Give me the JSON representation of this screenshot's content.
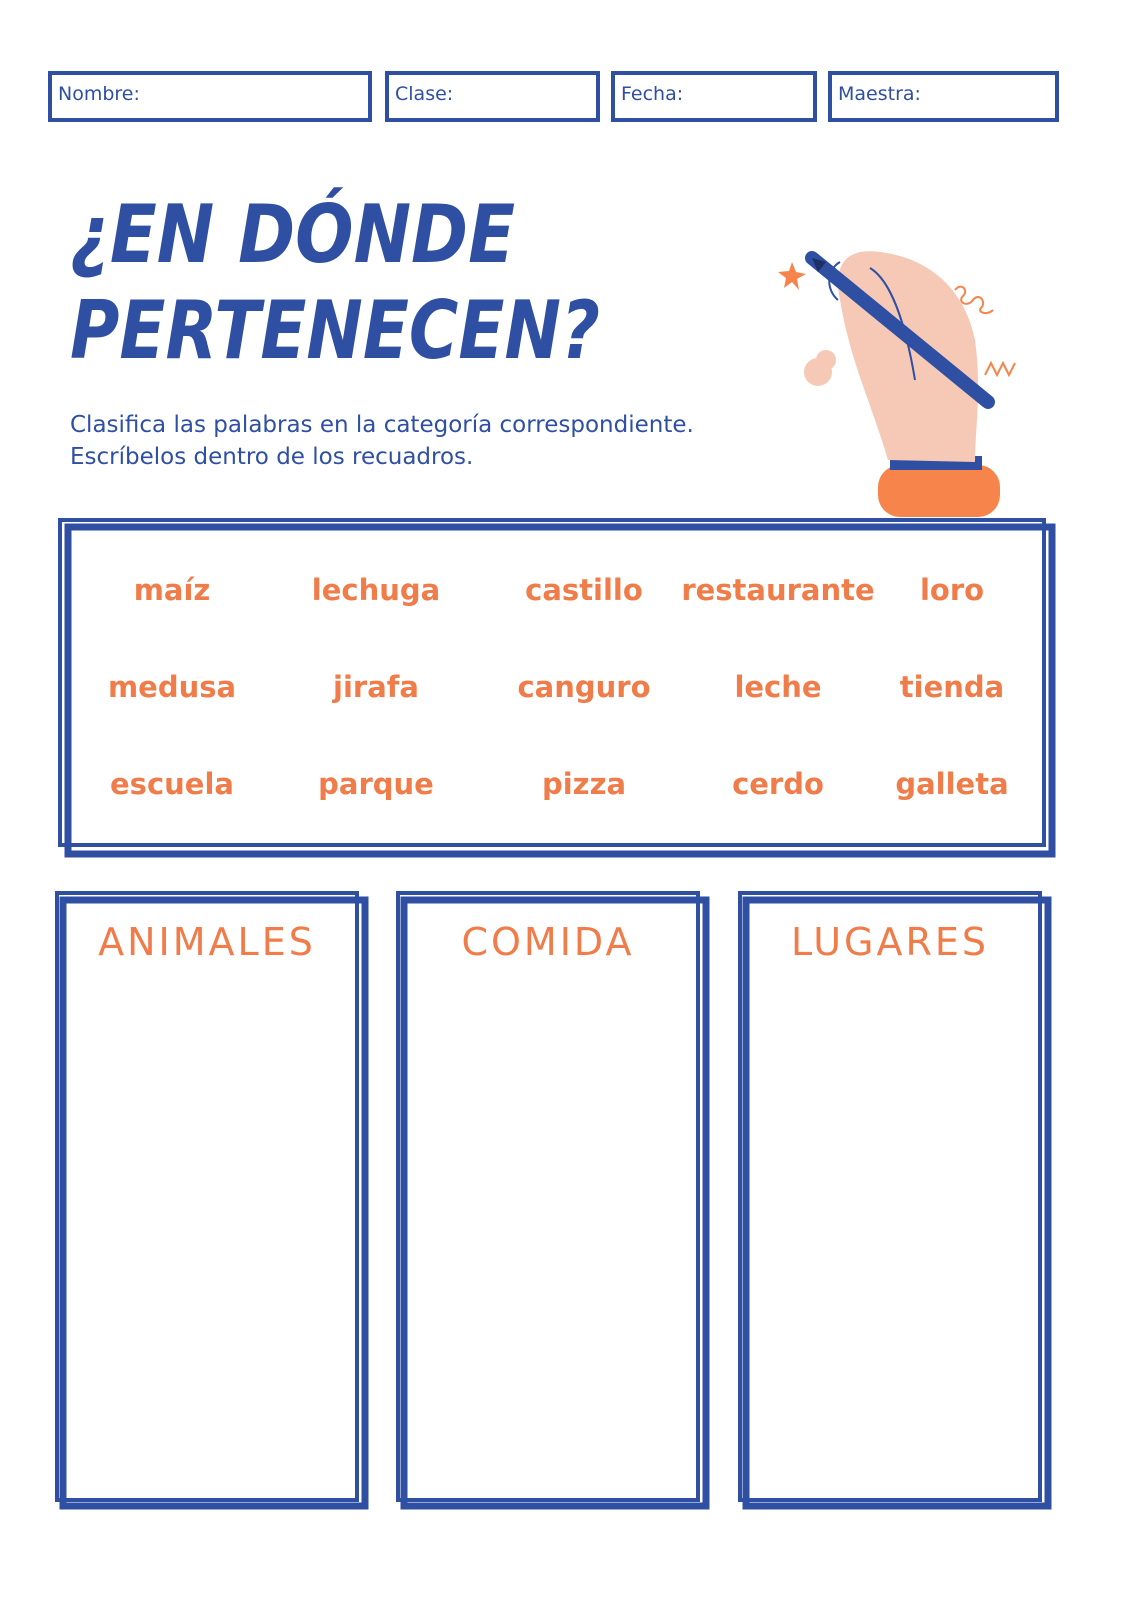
{
  "header": {
    "fields": [
      "Nombre:",
      "Clase:",
      "Fecha:",
      "Maestra:"
    ]
  },
  "title": {
    "lines": [
      "¿EN DÓNDE",
      "PERTENECEN?"
    ]
  },
  "instructions": [
    "Clasifica las palabras en la categoría correspondiente.",
    "Escríbelos dentro de los recuadros."
  ],
  "word_bank": {
    "rows": [
      [
        "maíz",
        "lechuga",
        "castillo",
        "restaurante",
        "loro"
      ],
      [
        "medusa",
        "jirafa",
        "canguro",
        "leche",
        "tienda"
      ],
      [
        "escuela",
        "parque",
        "pizza",
        "cerdo",
        "galleta"
      ]
    ]
  },
  "categories": [
    "ANIMALES",
    "COMIDA",
    "LUGARES"
  ]
}
